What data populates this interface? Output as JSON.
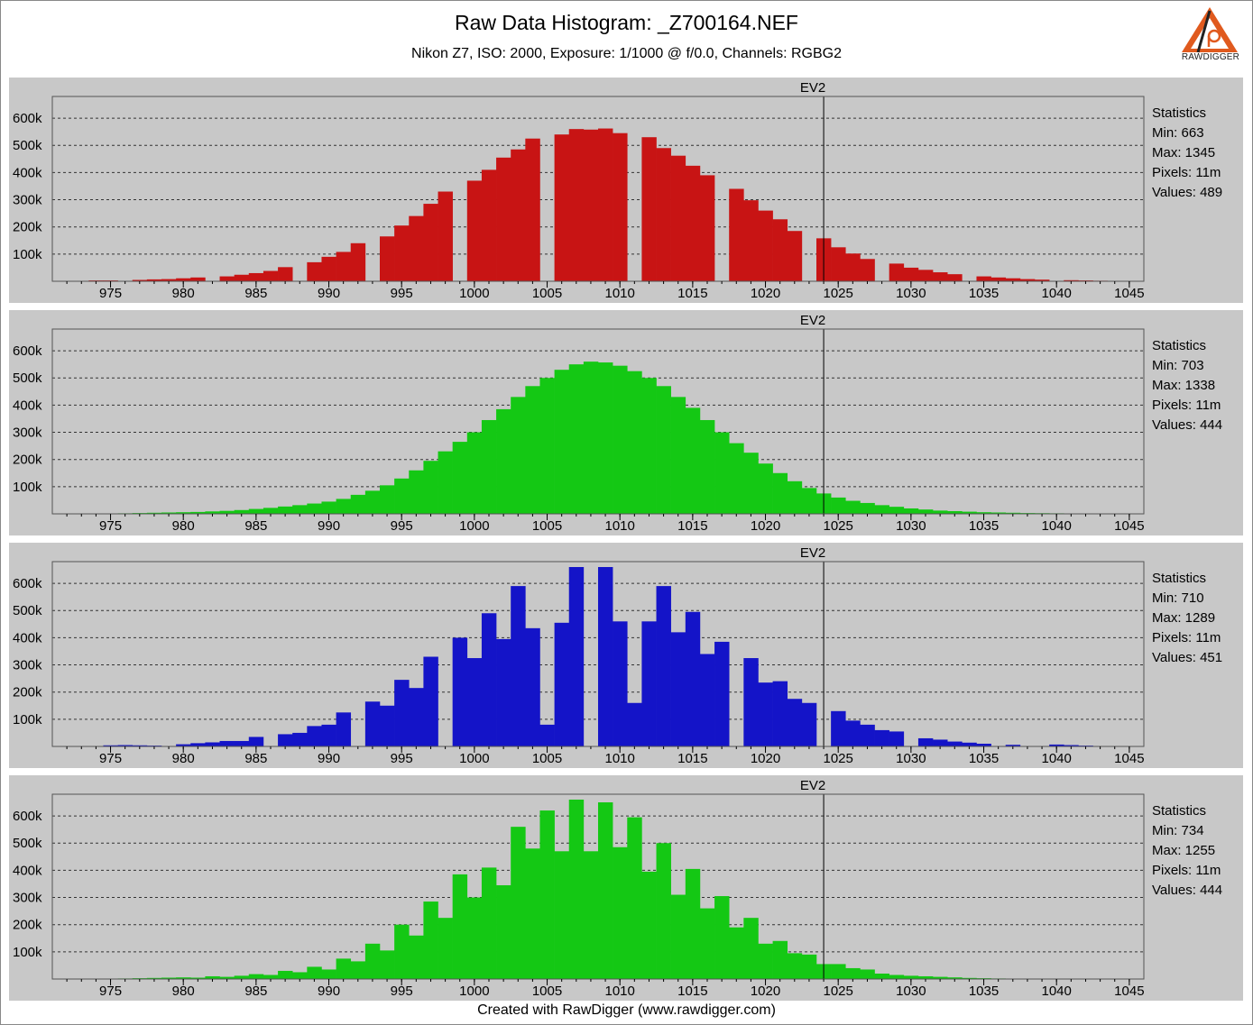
{
  "title": "Raw Data Histogram:  _Z700164.NEF",
  "subtitle": "Nikon Z7, ISO: 2000, Exposure: 1/1000 @ f/0.0, Channels: RGBG2",
  "footer": "Created with RawDigger (www.rawdigger.com)",
  "logo_text": "RAWDIGGER",
  "colors": {
    "panel_bg": "#c8c8c8",
    "grid": "#333333",
    "red": "#c81414",
    "green": "#14c814",
    "blue": "#1414c8",
    "logo_orange": "#e05a1e"
  },
  "chart_data": [
    {
      "type": "bar",
      "channel": "R",
      "color": "#c81414",
      "marker_label": "EV2",
      "marker_x": 1024,
      "xlim": [
        971,
        1046
      ],
      "ylim": [
        0,
        660000
      ],
      "x_ticks": [
        975,
        980,
        985,
        990,
        995,
        1000,
        1005,
        1010,
        1015,
        1020,
        1025,
        1030,
        1035,
        1040,
        1045
      ],
      "y_ticks": [
        100000,
        200000,
        300000,
        400000,
        500000,
        600000
      ],
      "y_tick_labels": [
        "100k",
        "200k",
        "300k",
        "400k",
        "500k",
        "600k"
      ],
      "x": [
        974,
        975,
        976,
        977,
        978,
        979,
        980,
        981,
        982,
        983,
        984,
        985,
        986,
        987,
        988,
        989,
        990,
        991,
        992,
        993,
        994,
        995,
        996,
        997,
        998,
        999,
        1000,
        1001,
        1002,
        1003,
        1004,
        1005,
        1006,
        1007,
        1008,
        1009,
        1010,
        1011,
        1012,
        1013,
        1014,
        1015,
        1016,
        1017,
        1018,
        1019,
        1020,
        1021,
        1022,
        1023,
        1024,
        1025,
        1026,
        1027,
        1028,
        1029,
        1030,
        1031,
        1032,
        1033,
        1034,
        1035,
        1036,
        1037,
        1038,
        1039,
        1040,
        1041,
        1042,
        1043
      ],
      "values": [
        3000,
        3000,
        0,
        5000,
        7000,
        8000,
        11000,
        14000,
        0,
        18000,
        24000,
        30000,
        38000,
        52000,
        0,
        70000,
        90000,
        108000,
        140000,
        0,
        165000,
        205000,
        240000,
        285000,
        330000,
        0,
        370000,
        410000,
        455000,
        485000,
        525000,
        0,
        540000,
        560000,
        558000,
        562000,
        545000,
        0,
        530000,
        490000,
        462000,
        425000,
        390000,
        0,
        340000,
        298000,
        260000,
        228000,
        185000,
        0,
        158000,
        125000,
        102000,
        82000,
        0,
        65000,
        50000,
        42000,
        33000,
        26000,
        0,
        18000,
        14000,
        11000,
        8000,
        6000,
        0,
        4000,
        3000,
        2000
      ],
      "stats": {
        "heading": "Statistics",
        "min": "Min: 663",
        "max": "Max: 1345",
        "pixels": "Pixels: 11m",
        "values": "Values: 489"
      }
    },
    {
      "type": "bar",
      "channel": "G",
      "color": "#14c814",
      "marker_label": "EV2",
      "marker_x": 1024,
      "xlim": [
        971,
        1046
      ],
      "ylim": [
        0,
        660000
      ],
      "x_ticks": [
        975,
        980,
        985,
        990,
        995,
        1000,
        1005,
        1010,
        1015,
        1020,
        1025,
        1030,
        1035,
        1040,
        1045
      ],
      "y_ticks": [
        100000,
        200000,
        300000,
        400000,
        500000,
        600000
      ],
      "y_tick_labels": [
        "100k",
        "200k",
        "300k",
        "400k",
        "500k",
        "600k"
      ],
      "x": [
        976,
        977,
        978,
        979,
        980,
        981,
        982,
        983,
        984,
        985,
        986,
        987,
        988,
        989,
        990,
        991,
        992,
        993,
        994,
        995,
        996,
        997,
        998,
        999,
        1000,
        1001,
        1002,
        1003,
        1004,
        1005,
        1006,
        1007,
        1008,
        1009,
        1010,
        1011,
        1012,
        1013,
        1014,
        1015,
        1016,
        1017,
        1018,
        1019,
        1020,
        1021,
        1022,
        1023,
        1024,
        1025,
        1026,
        1027,
        1028,
        1029,
        1030,
        1031,
        1032,
        1033,
        1034,
        1035,
        1036,
        1037,
        1038,
        1039,
        1040,
        1041,
        1042
      ],
      "values": [
        2000,
        3000,
        4000,
        5000,
        6000,
        7000,
        9000,
        11000,
        14000,
        18000,
        22000,
        27000,
        32000,
        38000,
        45000,
        55000,
        70000,
        85000,
        105000,
        130000,
        160000,
        195000,
        230000,
        265000,
        300000,
        345000,
        385000,
        430000,
        470000,
        500000,
        530000,
        550000,
        560000,
        557000,
        545000,
        525000,
        500000,
        470000,
        430000,
        390000,
        345000,
        300000,
        260000,
        225000,
        185000,
        150000,
        120000,
        95000,
        75000,
        60000,
        48000,
        40000,
        32000,
        26000,
        20000,
        16000,
        12000,
        10000,
        8000,
        6000,
        5000,
        4000,
        3000,
        2500,
        2000,
        1500,
        1000
      ],
      "stats": {
        "heading": "Statistics",
        "min": "Min: 703",
        "max": "Max: 1338",
        "pixels": "Pixels: 11m",
        "values": "Values: 444"
      }
    },
    {
      "type": "bar",
      "channel": "B",
      "color": "#1414c8",
      "marker_label": "EV2",
      "marker_x": 1024,
      "xlim": [
        971,
        1046
      ],
      "ylim": [
        0,
        660000
      ],
      "x_ticks": [
        975,
        980,
        985,
        990,
        995,
        1000,
        1005,
        1010,
        1015,
        1020,
        1025,
        1030,
        1035,
        1040,
        1045
      ],
      "y_ticks": [
        100000,
        200000,
        300000,
        400000,
        500000,
        600000
      ],
      "y_tick_labels": [
        "100k",
        "200k",
        "300k",
        "400k",
        "500k",
        "600k"
      ],
      "x": [
        975,
        976,
        977,
        978,
        980,
        981,
        982,
        983,
        984,
        985,
        987,
        988,
        989,
        990,
        991,
        993,
        994,
        995,
        996,
        997,
        999,
        1000,
        1001,
        1002,
        1003,
        1004,
        1005,
        1006,
        1007,
        1009,
        1010,
        1011,
        1012,
        1013,
        1014,
        1015,
        1016,
        1017,
        1019,
        1020,
        1021,
        1022,
        1023,
        1025,
        1026,
        1027,
        1028,
        1029,
        1031,
        1032,
        1033,
        1034,
        1035,
        1037,
        1038,
        1040,
        1041,
        1042
      ],
      "values": [
        4000,
        5000,
        4000,
        3000,
        8000,
        12000,
        15000,
        20000,
        20000,
        35000,
        45000,
        50000,
        75000,
        80000,
        125000,
        165000,
        150000,
        245000,
        215000,
        330000,
        400000,
        325000,
        490000,
        395000,
        590000,
        435000,
        80000,
        455000,
        660000,
        660000,
        460000,
        160000,
        460000,
        590000,
        420000,
        495000,
        340000,
        385000,
        325000,
        235000,
        240000,
        175000,
        160000,
        130000,
        95000,
        80000,
        60000,
        55000,
        30000,
        25000,
        18000,
        14000,
        10000,
        6000,
        0,
        7000,
        5000,
        3000
      ],
      "stats": {
        "heading": "Statistics",
        "min": "Min: 710",
        "max": "Max: 1289",
        "pixels": "Pixels: 11m",
        "values": "Values: 451"
      }
    },
    {
      "type": "bar",
      "channel": "G2",
      "color": "#14c814",
      "marker_label": "EV2",
      "marker_x": 1024,
      "xlim": [
        971,
        1046
      ],
      "ylim": [
        0,
        660000
      ],
      "x_ticks": [
        975,
        980,
        985,
        990,
        995,
        1000,
        1005,
        1010,
        1015,
        1020,
        1025,
        1030,
        1035,
        1040,
        1045
      ],
      "y_ticks": [
        100000,
        200000,
        300000,
        400000,
        500000,
        600000
      ],
      "y_tick_labels": [
        "100k",
        "200k",
        "300k",
        "400k",
        "500k",
        "600k"
      ],
      "x": [
        976,
        977,
        978,
        979,
        980,
        981,
        982,
        983,
        984,
        985,
        986,
        987,
        988,
        989,
        990,
        991,
        992,
        993,
        994,
        995,
        996,
        997,
        998,
        999,
        1000,
        1001,
        1002,
        1003,
        1004,
        1005,
        1006,
        1007,
        1008,
        1009,
        1010,
        1011,
        1012,
        1013,
        1014,
        1015,
        1016,
        1017,
        1018,
        1019,
        1020,
        1021,
        1022,
        1023,
        1024,
        1025,
        1026,
        1027,
        1028,
        1029,
        1030,
        1031,
        1032,
        1033,
        1034,
        1035,
        1036,
        1037
      ],
      "values": [
        2000,
        3000,
        4000,
        5000,
        6000,
        5000,
        10000,
        8000,
        12000,
        18000,
        15000,
        30000,
        25000,
        45000,
        35000,
        75000,
        65000,
        130000,
        105000,
        200000,
        160000,
        285000,
        225000,
        385000,
        300000,
        410000,
        345000,
        560000,
        480000,
        620000,
        470000,
        660000,
        470000,
        650000,
        485000,
        595000,
        395000,
        500000,
        310000,
        405000,
        260000,
        305000,
        190000,
        225000,
        130000,
        140000,
        95000,
        90000,
        55000,
        55000,
        40000,
        35000,
        20000,
        15000,
        12000,
        10000,
        8000,
        6000,
        4000,
        3000,
        2000,
        1000
      ],
      "stats": {
        "heading": "Statistics",
        "min": "Min: 734",
        "max": "Max: 1255",
        "pixels": "Pixels: 11m",
        "values": "Values: 444"
      }
    }
  ]
}
